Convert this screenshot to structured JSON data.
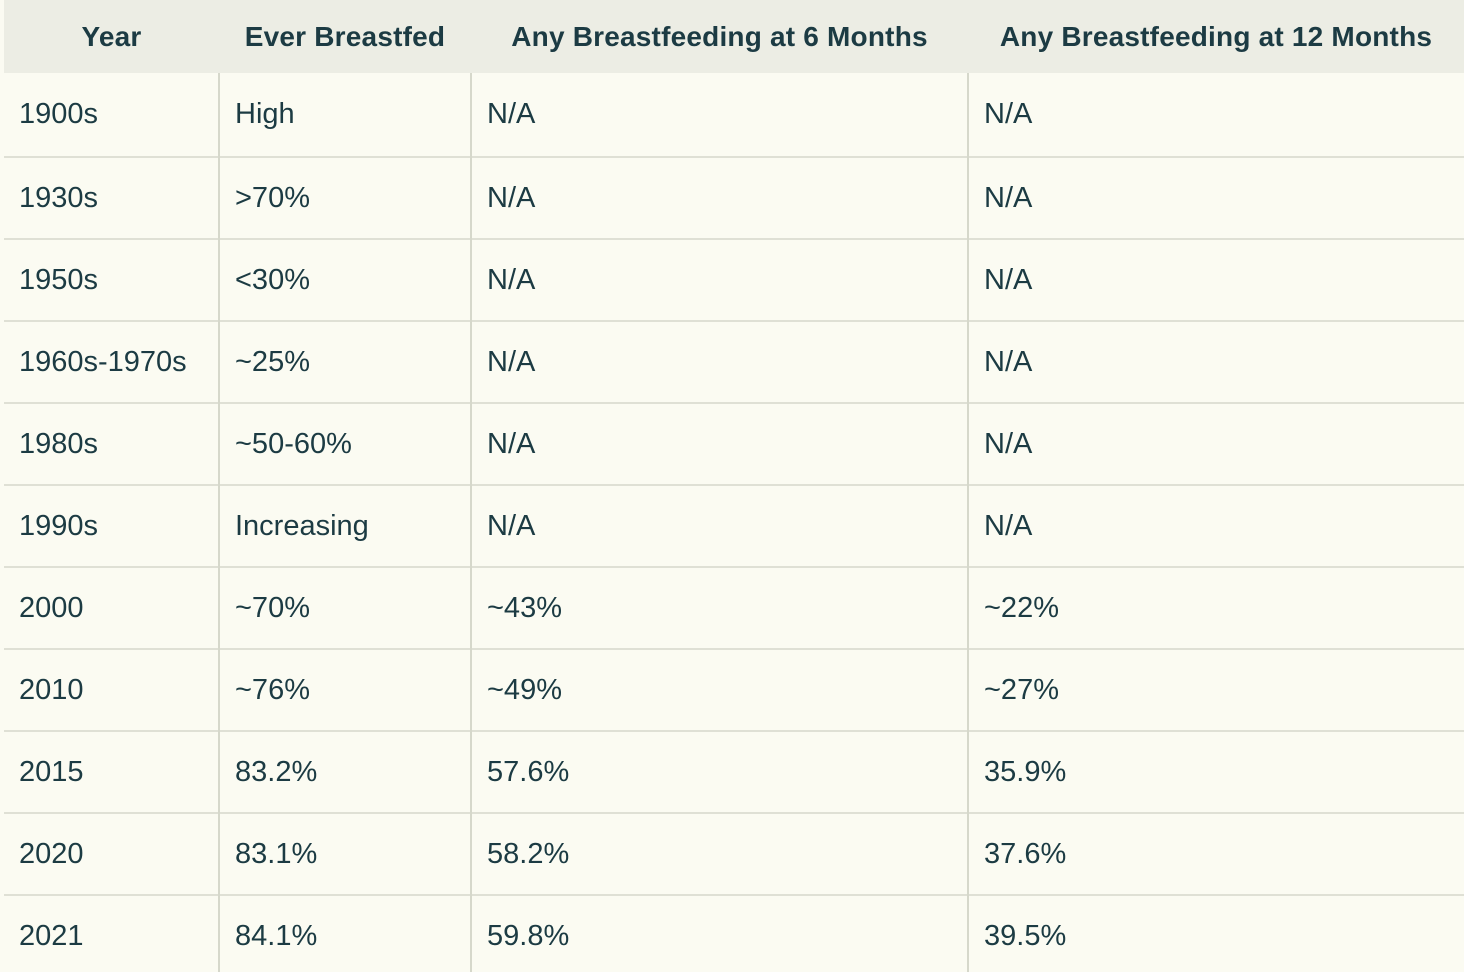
{
  "chart_data": {
    "type": "table",
    "columns": [
      "Year",
      "Ever Breastfed",
      "Any Breastfeeding at 6 Months",
      "Any Breastfeeding at 12 Months"
    ],
    "rows": [
      [
        "1900s",
        "High",
        "N/A",
        "N/A"
      ],
      [
        "1930s",
        ">70%",
        "N/A",
        "N/A"
      ],
      [
        "1950s",
        "<30%",
        "N/A",
        "N/A"
      ],
      [
        "1960s-1970s",
        "~25%",
        "N/A",
        "N/A"
      ],
      [
        "1980s",
        "~50-60%",
        "N/A",
        "N/A"
      ],
      [
        "1990s",
        "Increasing",
        "N/A",
        "N/A"
      ],
      [
        "2000",
        "~70%",
        "~43%",
        "~22%"
      ],
      [
        "2010",
        "~76%",
        "~49%",
        "~27%"
      ],
      [
        "2015",
        "83.2%",
        "57.6%",
        "35.9%"
      ],
      [
        "2020",
        "83.1%",
        "58.2%",
        "37.6%"
      ],
      [
        "2021",
        "84.1%",
        "59.8%",
        "39.5%"
      ]
    ],
    "layout_hints": {
      "header_alignment": "center",
      "body_alignment": "left",
      "grid": "on"
    }
  },
  "colors": {
    "header_bg": "#ecede4",
    "row_bg": "#fbfbf2",
    "border": "#dcded2",
    "text": "#1c3b43"
  }
}
